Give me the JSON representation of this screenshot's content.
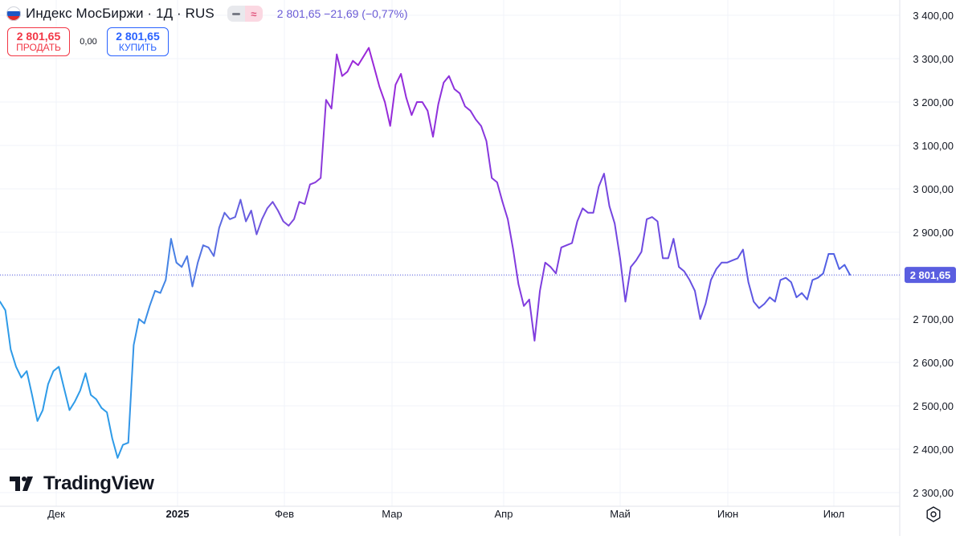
{
  "legend": {
    "title": "Индекс МосБиржи · 1Д · RUS",
    "ohlc": "2 801,65 −21,69 (−0,77%)",
    "flag_icon": "russia-flag-icon",
    "toggle_icons": [
      "minus-icon",
      "approx-icon"
    ]
  },
  "trade": {
    "sell_price": "2 801,65",
    "sell_label": "ПРОДАТЬ",
    "spread": "0,00",
    "buy_price": "2 801,65",
    "buy_label": "КУПИТЬ"
  },
  "branding": {
    "logo_text": "TradingView",
    "logo_icon": "tradingview-logo-icon"
  },
  "controls": {
    "settings_icon": "gear-icon"
  },
  "colors": {
    "line_start": "#2e9be8",
    "line_mid": "#9c27d8",
    "line_end": "#4f63e4",
    "sell": "#f23645",
    "buy": "#2962ff",
    "last_price_tag": "#5a5ee0",
    "grid": "#f0f3fa"
  },
  "chart_data": {
    "type": "line",
    "x_ticks": [
      "Дек",
      "2025",
      "Фев",
      "Мар",
      "Апр",
      "Май",
      "Июн",
      "Июл"
    ],
    "x_tick_bold": "2025",
    "y_ticks": [
      "2 300,00",
      "2 400,00",
      "2 500,00",
      "2 600,00",
      "2 700,00",
      "2 800,00",
      "2 900,00",
      "3 000,00",
      "3 100,00",
      "3 200,00",
      "3 300,00",
      "3 400,00"
    ],
    "y_tick_values": [
      2300,
      2400,
      2500,
      2600,
      2700,
      2800,
      2900,
      3000,
      3100,
      3200,
      3300,
      3400
    ],
    "ylim": [
      2280,
      3440
    ],
    "last_price": 2801.65,
    "last_price_label": "2 801,65",
    "grid": true,
    "series": [
      {
        "values": [
          2740,
          2720,
          2630,
          2590,
          2565,
          2580,
          2525,
          2465,
          2490,
          2550,
          2580,
          2590,
          2540,
          2490,
          2510,
          2535,
          2575,
          2525,
          2515,
          2495,
          2485,
          2425,
          2380,
          2410,
          2415,
          2640,
          2700,
          2690,
          2730,
          2765,
          2760,
          2790,
          2885,
          2830,
          2820,
          2845,
          2775,
          2830,
          2870,
          2865,
          2845,
          2910,
          2945,
          2930,
          2935,
          2975,
          2925,
          2950,
          2895,
          2930,
          2955,
          2970,
          2950,
          2925,
          2915,
          2930,
          2970,
          2965,
          3010,
          3015,
          3025,
          3205,
          3185,
          3310,
          3260,
          3270,
          3295,
          3285,
          3305,
          3325,
          3280,
          3235,
          3200,
          3145,
          3240,
          3265,
          3210,
          3170,
          3200,
          3200,
          3180,
          3120,
          3195,
          3245,
          3260,
          3230,
          3220,
          3190,
          3180,
          3160,
          3145,
          3110,
          3025,
          3015,
          2970,
          2930,
          2860,
          2780,
          2730,
          2745,
          2650,
          2765,
          2830,
          2820,
          2805,
          2865,
          2870,
          2875,
          2925,
          2955,
          2945,
          2945,
          3005,
          3035,
          2960,
          2920,
          2840,
          2740,
          2820,
          2835,
          2855,
          2930,
          2935,
          2925,
          2840,
          2840,
          2885,
          2820,
          2810,
          2790,
          2765,
          2700,
          2735,
          2790,
          2815,
          2830,
          2830,
          2835,
          2840,
          2860,
          2785,
          2740,
          2725,
          2735,
          2750,
          2740,
          2790,
          2795,
          2785,
          2750,
          2760,
          2745,
          2790,
          2795,
          2805,
          2850,
          2850,
          2815,
          2825,
          2802
        ]
      }
    ]
  }
}
